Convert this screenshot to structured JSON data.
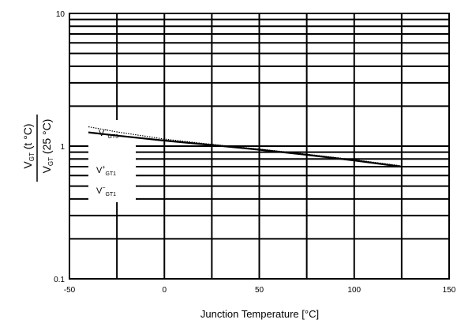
{
  "chart_data": {
    "type": "line",
    "xlabel": "Junction Temperature [°C]",
    "y_scale": "log",
    "xlim": [
      -50,
      150
    ],
    "ylim": [
      0.1,
      10
    ],
    "x_ticks": [
      "-50",
      "0",
      "50",
      "100",
      "150"
    ],
    "x_tick_values": [
      -50,
      0,
      50,
      100,
      150
    ],
    "y_ticks": [
      "0.1",
      "1",
      "10"
    ],
    "y_tick_values": [
      0.1,
      1,
      10
    ],
    "grid": true,
    "ylabel": {
      "numerator": {
        "main": "V",
        "sub": "GT",
        "rest": " (t °C)"
      },
      "denominator": {
        "main": "V",
        "sub": "GT",
        "rest": " (25 °C)"
      }
    },
    "annotations": [
      {
        "main": "V",
        "sup": "−",
        "sub": "GT3"
      },
      {
        "main": "V",
        "sup": "+",
        "sub": "GT1"
      },
      {
        "main": "V",
        "sup": "−",
        "sub": "GT1"
      }
    ],
    "series": [
      {
        "style": "solid",
        "x": [
          -40,
          -25,
          0,
          25,
          50,
          75,
          100,
          125
        ],
        "y": [
          1.27,
          1.2,
          1.1,
          1.02,
          0.94,
          0.86,
          0.78,
          0.7
        ]
      },
      {
        "style": "dotted",
        "x": [
          -40,
          -25,
          0,
          25,
          50,
          75,
          100,
          125
        ],
        "y": [
          1.4,
          1.28,
          1.13,
          1.03,
          0.95,
          0.87,
          0.79,
          0.71
        ]
      }
    ]
  }
}
